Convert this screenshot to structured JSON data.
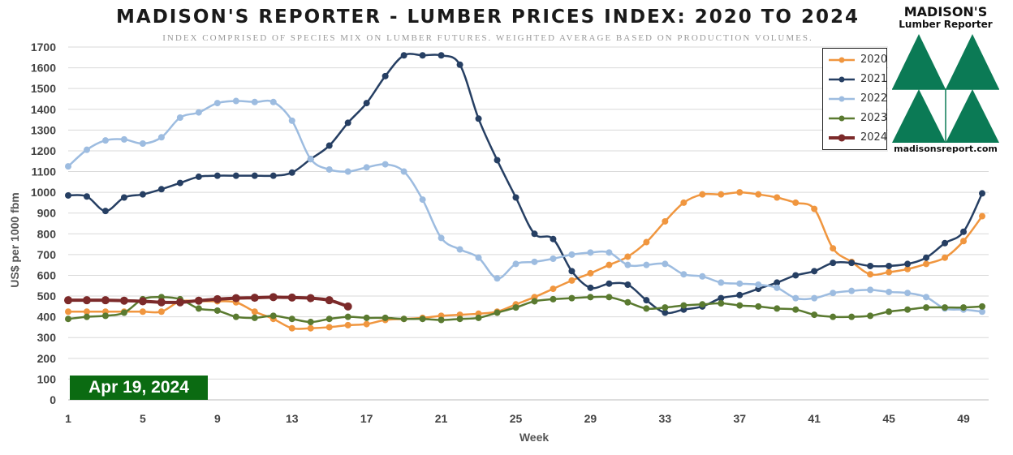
{
  "logo": {
    "name": "MADISON'S",
    "sub": "Lumber Reporter",
    "url": "madisonsreport.com",
    "colors": {
      "green": "#0b7a55",
      "white": "#ffffff"
    }
  },
  "date_badge": {
    "text": "Apr 19, 2024",
    "color": "#0b6b12"
  },
  "chart_data": {
    "type": "line",
    "title": "MADISON'S REPORTER - LUMBER PRICES INDEX: 2020 TO 2024",
    "subtitle": "INDEX COMPRISED OF SPECIES MIX ON LUMBER FUTURES. WEIGHTED AVERAGE BASED ON PRODUCTION VOLUMES.",
    "xlabel": "Week",
    "ylabel": "US$ per 1000 fbm",
    "x_ticks": [
      1,
      5,
      9,
      13,
      17,
      21,
      25,
      29,
      33,
      37,
      41,
      45,
      49
    ],
    "y_ticks": [
      0,
      100,
      200,
      300,
      400,
      500,
      600,
      700,
      800,
      900,
      1000,
      1100,
      1200,
      1300,
      1400,
      1500,
      1600,
      1700
    ],
    "xlim": [
      1,
      50
    ],
    "ylim": [
      0,
      1700
    ],
    "grid": true,
    "legend_position": "top-right",
    "series": [
      {
        "name": "2020",
        "color": "#f0963f",
        "values": [
          425,
          425,
          425,
          425,
          425,
          425,
          475,
          475,
          475,
          470,
          425,
          390,
          345,
          345,
          350,
          360,
          365,
          385,
          390,
          395,
          405,
          410,
          415,
          425,
          460,
          495,
          535,
          575,
          610,
          650,
          690,
          760,
          860,
          950,
          990,
          990,
          1000,
          990,
          975,
          950,
          920,
          730,
          665,
          605,
          615,
          630,
          655,
          685,
          765,
          885
        ]
      },
      {
        "name": "2021",
        "color": "#263f63",
        "values": [
          985,
          980,
          910,
          975,
          990,
          1015,
          1045,
          1075,
          1080,
          1080,
          1080,
          1080,
          1095,
          1160,
          1225,
          1335,
          1430,
          1560,
          1660,
          1660,
          1660,
          1615,
          1355,
          1155,
          975,
          800,
          775,
          620,
          540,
          560,
          555,
          480,
          420,
          435,
          450,
          490,
          505,
          535,
          565,
          600,
          620,
          660,
          660,
          645,
          645,
          655,
          685,
          755,
          810,
          995
        ]
      },
      {
        "name": "2022",
        "color": "#9dbce0",
        "values": [
          1125,
          1205,
          1250,
          1255,
          1235,
          1265,
          1360,
          1385,
          1430,
          1440,
          1435,
          1435,
          1345,
          1160,
          1110,
          1100,
          1120,
          1135,
          1100,
          965,
          780,
          725,
          685,
          585,
          655,
          665,
          680,
          700,
          710,
          710,
          650,
          650,
          655,
          605,
          595,
          565,
          560,
          555,
          540,
          490,
          490,
          515,
          525,
          530,
          520,
          515,
          495,
          440,
          435,
          425
        ]
      },
      {
        "name": "2023",
        "color": "#5a7a30",
        "values": [
          390,
          400,
          405,
          420,
          485,
          495,
          485,
          440,
          430,
          400,
          395,
          405,
          390,
          375,
          390,
          400,
          395,
          395,
          390,
          390,
          385,
          390,
          395,
          420,
          445,
          475,
          485,
          490,
          495,
          495,
          470,
          440,
          445,
          455,
          460,
          465,
          455,
          450,
          440,
          435,
          410,
          400,
          400,
          405,
          425,
          435,
          445,
          445,
          445,
          450
        ]
      },
      {
        "name": "2024",
        "color": "#7c2a2a",
        "values": [
          480,
          480,
          480,
          478,
          475,
          470,
          470,
          478,
          485,
          490,
          492,
          495,
          493,
          490,
          480,
          450
        ]
      }
    ]
  }
}
